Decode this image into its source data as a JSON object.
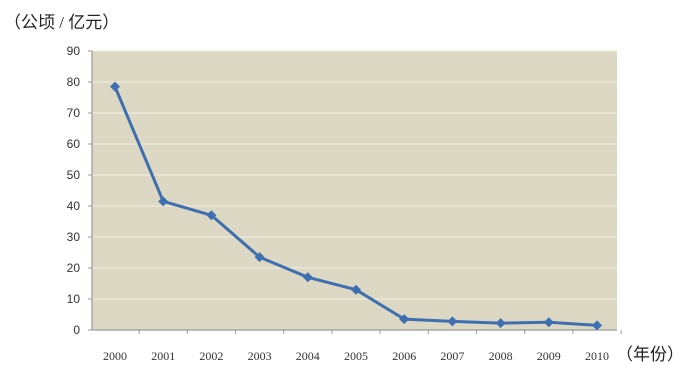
{
  "chart_data": {
    "type": "line",
    "ylabel": "（公顷 / 亿元）",
    "xlabel": "（年份）",
    "categories": [
      "2000",
      "2001",
      "2002",
      "2003",
      "2004",
      "2005",
      "2006",
      "2007",
      "2008",
      "2009",
      "2010"
    ],
    "series": [
      {
        "values": [
          78.5,
          41.5,
          37.0,
          23.5,
          17.0,
          13.0,
          3.5,
          2.8,
          2.2,
          2.5,
          1.5
        ]
      }
    ],
    "ylim": [
      0,
      90
    ],
    "yticks": [
      "0",
      "10",
      "20",
      "30",
      "40",
      "50",
      "60",
      "70",
      "80",
      "90"
    ],
    "grid": true,
    "colors": {
      "plot_background": "#DDD8C3",
      "series_line": "#3E6FB0",
      "grid": "#EFEBDC",
      "axis": "#9A9A9A"
    }
  }
}
